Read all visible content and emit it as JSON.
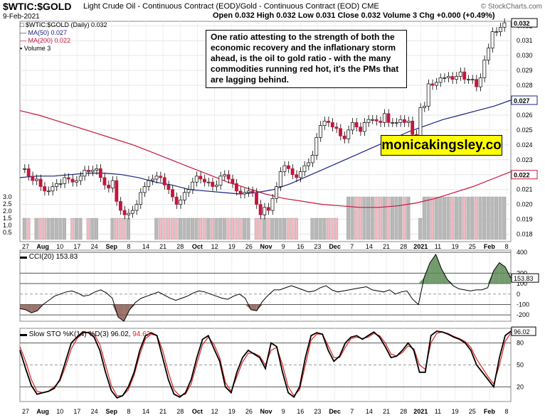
{
  "header": {
    "ticker": "$WTIC:$GOLD",
    "description": "Light Crude Oil - Continuous Contract (EOD)/Gold - Continuous Contract (EOD)",
    "exchange": "CME",
    "date": "9-Feb-2021",
    "ohlc": "Open 0.032  High 0.032  Low 0.031  Close 0.032  Volume 3  Chg +0.000 (+0.49%)",
    "watermark": "© StockCharts.com"
  },
  "legend": {
    "price": "$WTIC:$GOLD (Daily) 0.032",
    "ma50": "MA(50) 0.027",
    "ma200": "MA(200) 0.022",
    "volume": "Volume 3"
  },
  "annotation": "One ratio attesting to the strength of both the economic recovery and the inflationary storm ahead, is the oil to gold ratio - with the many commodities running red hot, it's the PMs that are lagging behind.",
  "brand": "monicakingsley.co",
  "colors": {
    "up": "#ffffff",
    "down": "#c8143c",
    "ma50": "#1a237e",
    "ma200": "#c8143c",
    "volume_up": "#b8b8b8",
    "volume_down": "#f2b8c2",
    "cci_fill": "#5a8a55",
    "cci_fill_neg": "#8b5a50",
    "sto_k": "#000000",
    "sto_d": "#e02020"
  },
  "chart_data": [
    {
      "type": "candlestick",
      "title": "$WTIC:$GOLD (Daily)",
      "ylim": [
        0.0175,
        0.0323
      ],
      "y_ticks": [
        0.018,
        0.019,
        0.02,
        0.021,
        0.022,
        0.023,
        0.024,
        0.025,
        0.026,
        0.027,
        0.028,
        0.029,
        0.03,
        0.031,
        0.032
      ],
      "y_tick_labels": [
        "0.018",
        "0.019",
        "0.020",
        "0.021",
        "0.022",
        "0.023",
        "0.024",
        "0.025",
        "0.026",
        "0.027",
        "0.028",
        "0.029",
        "0.030",
        "0.031",
        "0.032"
      ],
      "last_values": {
        "close": "0.032",
        "ma50": "0.027",
        "ma200": "0.022"
      },
      "x_tick_labels": [
        "27",
        "Aug",
        "10",
        "17",
        "24",
        "Sep",
        "8",
        "14",
        "21",
        "28",
        "Oct",
        "12",
        "19",
        "26",
        "Nov",
        "9",
        "16",
        "23",
        "Dec",
        "7",
        "14",
        "21",
        "28",
        "2021",
        "11",
        "19",
        "25",
        "Feb",
        "8"
      ],
      "close": [
        0.0224,
        0.0219,
        0.0216,
        0.0217,
        0.0212,
        0.0209,
        0.0209,
        0.0212,
        0.0214,
        0.0214,
        0.0218,
        0.0217,
        0.0215,
        0.0216,
        0.0219,
        0.0223,
        0.0222,
        0.0223,
        0.0224,
        0.0218,
        0.0213,
        0.0211,
        0.0216,
        0.0202,
        0.0196,
        0.0193,
        0.0194,
        0.0196,
        0.02,
        0.0208,
        0.0212,
        0.0216,
        0.0217,
        0.0219,
        0.0218,
        0.0213,
        0.021,
        0.0205,
        0.02,
        0.0203,
        0.0208,
        0.021,
        0.0215,
        0.0219,
        0.0217,
        0.0215,
        0.0215,
        0.0212,
        0.0213,
        0.0219,
        0.022,
        0.0217,
        0.0214,
        0.0209,
        0.0207,
        0.0208,
        0.0209,
        0.0208,
        0.02,
        0.0193,
        0.0198,
        0.0196,
        0.0204,
        0.0212,
        0.0222,
        0.0226,
        0.0224,
        0.022,
        0.0218,
        0.0222,
        0.0226,
        0.0228,
        0.0233,
        0.0245,
        0.0253,
        0.0256,
        0.0255,
        0.0252,
        0.0251,
        0.0246,
        0.0244,
        0.025,
        0.0255,
        0.0252,
        0.0249,
        0.0255,
        0.0257,
        0.0257,
        0.0256,
        0.0255,
        0.0261,
        0.0255,
        0.0255,
        0.0255,
        0.0257,
        0.0255,
        0.0256,
        0.0247,
        0.0244,
        0.0265,
        0.0266,
        0.0281,
        0.028,
        0.0282,
        0.0285,
        0.0285,
        0.0286,
        0.0284,
        0.0286,
        0.0289,
        0.0284,
        0.0284,
        0.0284,
        0.0279,
        0.0285,
        0.0297,
        0.0305,
        0.0316,
        0.0316,
        0.0319,
        0.0322
      ],
      "ma50": [
        0.0218,
        0.0219,
        0.0219,
        0.022,
        0.0221,
        0.0221,
        0.022,
        0.0218,
        0.0215,
        0.0213,
        0.021,
        0.0209,
        0.0208,
        0.0207,
        0.0208,
        0.021,
        0.0214,
        0.0219,
        0.0224,
        0.0229,
        0.0234,
        0.0239,
        0.0244,
        0.0249,
        0.0253,
        0.0257,
        0.026,
        0.0263,
        0.0266,
        0.027
      ],
      "ma200": [
        0.0263,
        0.026,
        0.0256,
        0.0252,
        0.0248,
        0.0244,
        0.024,
        0.0235,
        0.023,
        0.0225,
        0.022,
        0.0215,
        0.0211,
        0.0207,
        0.0204,
        0.0202,
        0.02,
        0.0199,
        0.0198,
        0.0198,
        0.0199,
        0.0201,
        0.0204,
        0.0208,
        0.0212,
        0.0217,
        0.0222
      ],
      "volume_axis_ticks": [
        "0.5",
        "1.0",
        "1.5",
        "2.0",
        "2.5",
        "3.0"
      ],
      "volume": [
        1.5,
        1.5,
        0,
        1.5,
        1.5,
        1.5,
        1.5,
        1.5,
        1.5,
        1.5,
        1.5,
        0,
        1.5,
        1.5,
        1.5,
        0,
        1.5,
        1.5,
        1.5,
        0,
        0,
        0,
        1.5,
        1.5,
        1.5,
        1.5,
        1.5,
        0,
        0,
        0,
        0,
        0,
        0,
        1.5,
        1.5,
        1.5,
        1.5,
        1.5,
        1.5,
        1.5,
        1.5,
        1.5,
        1.5,
        1.5,
        1.5,
        1.5,
        1.5,
        1.5,
        1.5,
        1.5,
        1.5,
        1.5,
        1.5,
        1.5,
        1.5,
        1.5,
        1.5,
        0,
        1.5,
        1.5,
        1.5,
        1.5,
        1.5,
        1.5,
        1.5,
        1.5,
        1.5,
        1.5,
        1.5,
        0,
        0,
        0,
        1.5,
        1.5,
        1.5,
        1.5,
        1.5,
        1.5,
        1.5,
        0,
        0,
        3.0,
        3.0,
        3.0,
        3.0,
        3.0,
        3.0,
        3.0,
        3.0,
        3.0,
        3.0,
        3.0,
        3.0,
        3.0,
        3.0,
        3.0,
        3.0,
        0,
        0,
        1.5,
        3.0,
        3.0,
        3.0,
        3.0,
        3.0,
        3.0,
        3.0,
        3.0,
        3.0,
        3.0,
        3.0,
        3.0,
        3.0,
        3.0,
        3.0,
        3.0,
        3.0,
        3.0,
        3.0,
        3.0,
        3.0
      ]
    },
    {
      "type": "area",
      "title": "CCI(20) 153.83",
      "ylim": [
        -260,
        420
      ],
      "y_ticks": [
        -200,
        -100,
        0,
        100,
        200,
        400
      ],
      "y_tick_labels": [
        "-200",
        "-100",
        "0",
        "100",
        "200",
        "400"
      ],
      "last_value": "153.83",
      "values": [
        -140,
        -150,
        -180,
        -160,
        -100,
        -60,
        -20,
        0,
        20,
        30,
        10,
        -20,
        -10,
        20,
        40,
        10,
        -40,
        -220,
        -260,
        -150,
        -80,
        -40,
        -20,
        0,
        20,
        -10,
        -40,
        -60,
        -40,
        -20,
        10,
        30,
        20,
        0,
        -20,
        -40,
        -50,
        -20,
        0,
        -40,
        -150,
        -160,
        -70,
        -10,
        40,
        40,
        60,
        80,
        60,
        40,
        20,
        30,
        60,
        80,
        40,
        20,
        30,
        40,
        50,
        60,
        70,
        40,
        30,
        20,
        40,
        0,
        20,
        30,
        -50,
        -100,
        160,
        300,
        380,
        240,
        140,
        80,
        50,
        40,
        30,
        40,
        40,
        60,
        220,
        300,
        260,
        154
      ]
    },
    {
      "type": "line",
      "title": "Slow STO %K(14) %D(3) 96.02, 94.62",
      "ylim": [
        0,
        100
      ],
      "y_ticks": [
        20,
        50,
        80
      ],
      "y_tick_labels": [
        "20",
        "50",
        "80"
      ],
      "last_k": "96.02",
      "last_d": "94.62",
      "k": [
        70,
        45,
        22,
        10,
        12,
        14,
        18,
        30,
        55,
        80,
        88,
        95,
        94,
        88,
        70,
        40,
        15,
        5,
        8,
        20,
        40,
        70,
        90,
        94,
        90,
        60,
        30,
        10,
        6,
        12,
        30,
        60,
        85,
        90,
        72,
        55,
        20,
        12,
        40,
        60,
        70,
        65,
        60,
        45,
        80,
        75,
        40,
        12,
        6,
        20,
        60,
        90,
        94,
        92,
        70,
        55,
        62,
        80,
        88,
        90,
        85,
        90,
        95,
        88,
        75,
        60,
        62,
        70,
        80,
        70,
        40,
        40,
        90,
        96,
        95,
        92,
        88,
        85,
        80,
        70,
        50,
        40,
        30,
        20,
        60,
        90,
        96
      ],
      "d": [
        75,
        55,
        30,
        14,
        12,
        14,
        20,
        28,
        48,
        72,
        86,
        93,
        95,
        92,
        78,
        50,
        22,
        8,
        8,
        16,
        36,
        64,
        86,
        92,
        90,
        70,
        40,
        16,
        8,
        10,
        24,
        52,
        78,
        88,
        78,
        60,
        26,
        14,
        34,
        54,
        66,
        66,
        62,
        50,
        70,
        74,
        50,
        20,
        8,
        16,
        50,
        84,
        92,
        92,
        76,
        60,
        60,
        74,
        86,
        88,
        86,
        88,
        93,
        90,
        80,
        65,
        62,
        67,
        76,
        72,
        50,
        44,
        80,
        93,
        95,
        93,
        89,
        86,
        82,
        74,
        58,
        46,
        34,
        24,
        50,
        82,
        94
      ]
    }
  ]
}
